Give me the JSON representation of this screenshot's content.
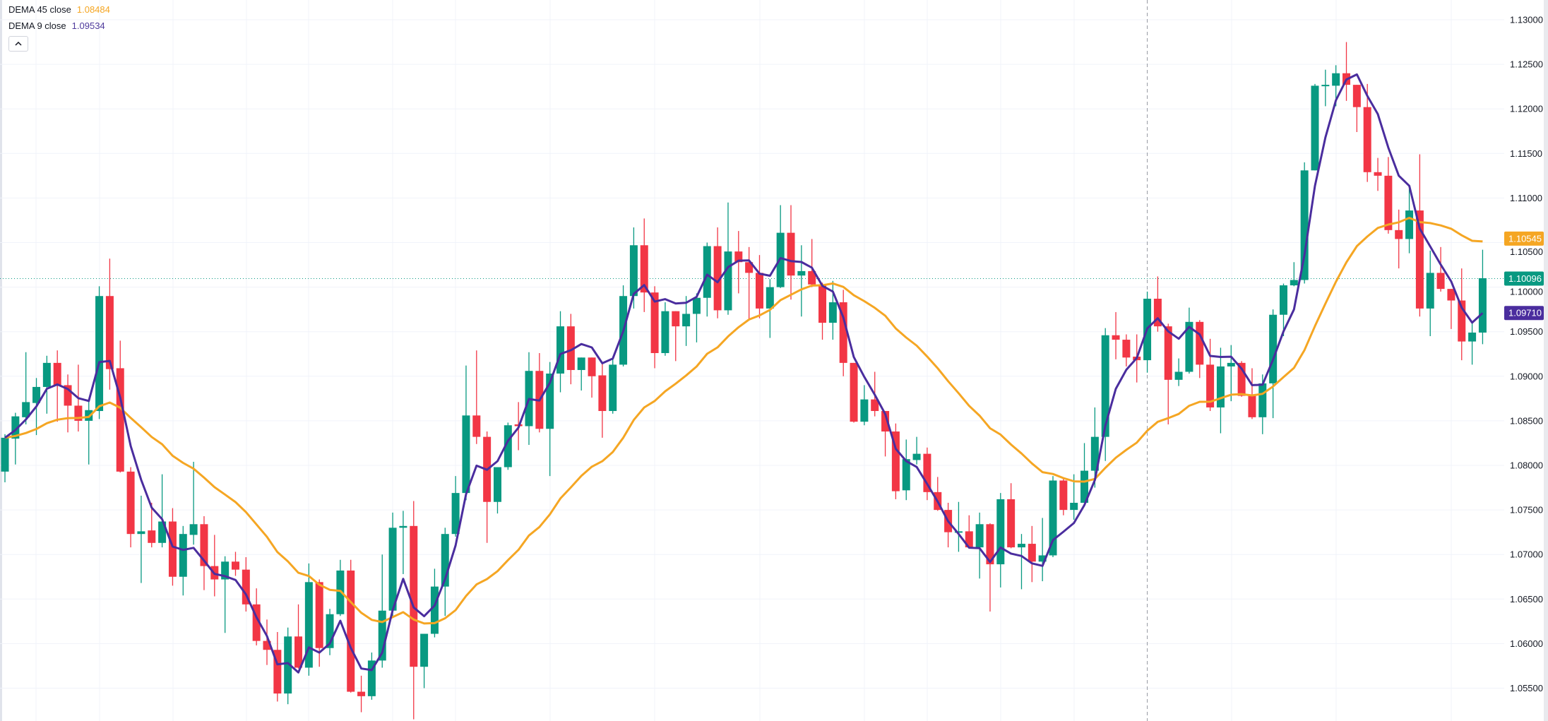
{
  "legend": {
    "indicators": [
      {
        "label": "DEMA 45 close",
        "value": "1.08484",
        "color": "#f5a623"
      },
      {
        "label": "DEMA 9 close",
        "value": "1.09534",
        "color": "#4f3a9c"
      }
    ],
    "collapse_icon": "chevron-up-icon"
  },
  "colors": {
    "up": "#089981",
    "down": "#f23645",
    "dema45": "#f5a623",
    "dema9": "#4a2d9e",
    "grid": "#f0f3fa",
    "axis_text": "#131722",
    "crosshair": "#9598a1"
  },
  "price_labels": [
    {
      "name": "dema45-price-label",
      "value": "1.10545",
      "price": 1.10545,
      "color": "#f5a623"
    },
    {
      "name": "last-price-label",
      "value": "1.10096",
      "price": 1.10096,
      "color": "#089981"
    },
    {
      "name": "dema9-price-label",
      "value": "1.09710",
      "price": 1.0971,
      "color": "#4a2d9e"
    }
  ],
  "chart_data": {
    "type": "candlestick",
    "title": "",
    "ylim": [
      1.0515,
      1.1305
    ],
    "yticks": [
      "1.13000",
      "1.12500",
      "1.12000",
      "1.11500",
      "1.11000",
      "1.10500",
      "1.10000",
      "1.09500",
      "1.09000",
      "1.08500",
      "1.08000",
      "1.07500",
      "1.07000",
      "1.06500",
      "1.06000",
      "1.05500"
    ],
    "grid": true,
    "last_price": 1.10096,
    "crosshair_candle_index": 109,
    "indicators": [
      {
        "type": "DEMA",
        "period": 45,
        "source": "close"
      },
      {
        "type": "DEMA",
        "period": 9,
        "source": "close"
      }
    ],
    "ohlc": [
      [
        1.0793,
        1.0835,
        1.0781,
        1.0831
      ],
      [
        1.083,
        1.0859,
        1.0801,
        1.0855
      ],
      [
        1.0854,
        1.0927,
        1.0846,
        1.0871
      ],
      [
        1.087,
        1.0898,
        1.0834,
        1.0888
      ],
      [
        1.0888,
        1.0923,
        1.0858,
        1.0915
      ],
      [
        1.0915,
        1.0929,
        1.0849,
        1.089
      ],
      [
        1.089,
        1.0902,
        1.0837,
        1.0867
      ],
      [
        1.0867,
        1.0913,
        1.0838,
        1.085
      ],
      [
        1.085,
        1.0874,
        1.0801,
        1.0862
      ],
      [
        1.0861,
        1.1001,
        1.0852,
        1.099
      ],
      [
        1.099,
        1.1032,
        1.0885,
        1.0908
      ],
      [
        1.0909,
        1.094,
        1.0792,
        1.0793
      ],
      [
        1.0793,
        1.0798,
        1.0708,
        1.0723
      ],
      [
        1.0723,
        1.0766,
        1.0668,
        1.0726
      ],
      [
        1.0727,
        1.0758,
        1.0708,
        1.0713
      ],
      [
        1.0713,
        1.079,
        1.0708,
        1.0737
      ],
      [
        1.0737,
        1.0752,
        1.0665,
        1.0675
      ],
      [
        1.0675,
        1.0732,
        1.0654,
        1.0723
      ],
      [
        1.0722,
        1.0804,
        1.0711,
        1.0734
      ],
      [
        1.0734,
        1.0743,
        1.066,
        1.0687
      ],
      [
        1.0687,
        1.0722,
        1.0653,
        1.0672
      ],
      [
        1.0672,
        1.0698,
        1.0612,
        1.0692
      ],
      [
        1.0692,
        1.0703,
        1.0676,
        1.0683
      ],
      [
        1.0683,
        1.0697,
        1.0636,
        1.0644
      ],
      [
        1.0644,
        1.0662,
        1.0598,
        1.0603
      ],
      [
        1.0603,
        1.0627,
        1.0576,
        1.0593
      ],
      [
        1.0593,
        1.0613,
        1.0535,
        1.0544
      ],
      [
        1.0544,
        1.0618,
        1.0532,
        1.0608
      ],
      [
        1.0608,
        1.0644,
        1.0572,
        1.0573
      ],
      [
        1.0573,
        1.069,
        1.0564,
        1.0669
      ],
      [
        1.0669,
        1.0672,
        1.0574,
        1.0595
      ],
      [
        1.0595,
        1.0639,
        1.0587,
        1.0633
      ],
      [
        1.0633,
        1.0694,
        1.0631,
        1.0682
      ],
      [
        1.0682,
        1.0694,
        1.0545,
        1.0546
      ],
      [
        1.0546,
        1.0564,
        1.0523,
        1.0541
      ],
      [
        1.0541,
        1.059,
        1.0537,
        1.0581
      ],
      [
        1.0581,
        1.07,
        1.0573,
        1.0637
      ],
      [
        1.0637,
        1.0747,
        1.0631,
        1.073
      ],
      [
        1.073,
        1.0749,
        1.0678,
        1.0732
      ],
      [
        1.0732,
        1.076,
        1.0515,
        1.0574
      ],
      [
        1.0574,
        1.0611,
        1.055,
        1.0611
      ],
      [
        1.0611,
        1.0684,
        1.0607,
        1.0664
      ],
      [
        1.0664,
        1.073,
        1.0631,
        1.0723
      ],
      [
        1.0723,
        1.0788,
        1.072,
        1.0769
      ],
      [
        1.0769,
        1.0912,
        1.0761,
        1.0856
      ],
      [
        1.0856,
        1.0929,
        1.0824,
        1.0832
      ],
      [
        1.0832,
        1.0838,
        1.0713,
        1.0759
      ],
      [
        1.0759,
        1.0798,
        1.0746,
        1.0798
      ],
      [
        1.0798,
        1.0848,
        1.0795,
        1.0845
      ],
      [
        1.0846,
        1.0871,
        1.0817,
        1.0844
      ],
      [
        1.0844,
        1.0927,
        1.0823,
        1.0906
      ],
      [
        1.0906,
        1.0926,
        1.0837,
        1.0841
      ],
      [
        1.0841,
        1.0916,
        1.0788,
        1.0903
      ],
      [
        1.0903,
        1.0973,
        1.0882,
        1.0956
      ],
      [
        1.0956,
        1.097,
        1.0891,
        1.0907
      ],
      [
        1.0907,
        1.0921,
        1.0884,
        1.0921
      ],
      [
        1.0921,
        1.0921,
        1.0876,
        1.09
      ],
      [
        1.0901,
        1.0914,
        1.0831,
        1.0861
      ],
      [
        1.0861,
        1.0922,
        1.0858,
        1.0913
      ],
      [
        1.0913,
        1.1002,
        1.0911,
        1.099
      ],
      [
        1.099,
        1.1067,
        1.0976,
        1.1047
      ],
      [
        1.1047,
        1.1077,
        1.0972,
        1.0994
      ],
      [
        1.0994,
        1.1001,
        1.0909,
        1.0926
      ],
      [
        1.0926,
        1.0983,
        1.0923,
        1.0973
      ],
      [
        1.0973,
        1.0973,
        1.0917,
        1.0956
      ],
      [
        1.0956,
        1.099,
        1.0934,
        1.097
      ],
      [
        1.097,
        1.0993,
        1.0938,
        1.0988
      ],
      [
        1.0988,
        1.105,
        1.0967,
        1.1046
      ],
      [
        1.1046,
        1.1067,
        1.0965,
        1.0974
      ],
      [
        1.0974,
        1.1095,
        1.0969,
        1.104
      ],
      [
        1.104,
        1.1063,
        1.0993,
        1.1028
      ],
      [
        1.1028,
        1.1045,
        1.0963,
        1.1016
      ],
      [
        1.1016,
        1.1036,
        1.0965,
        1.0976
      ],
      [
        1.0976,
        1.1009,
        1.0943,
        1.1
      ],
      [
        1.1,
        1.1092,
        1.0999,
        1.1061
      ],
      [
        1.1061,
        1.1092,
        1.0986,
        1.1013
      ],
      [
        1.1013,
        1.1047,
        1.0967,
        1.1018
      ],
      [
        1.1018,
        1.1054,
        1.1,
        1.1003
      ],
      [
        1.1003,
        1.1005,
        1.0941,
        1.096
      ],
      [
        1.096,
        1.1007,
        1.0941,
        1.0983
      ],
      [
        1.0983,
        1.0997,
        1.09,
        1.0915
      ],
      [
        1.0915,
        1.0915,
        1.0848,
        1.0849
      ],
      [
        1.0849,
        1.089,
        1.0845,
        1.0874
      ],
      [
        1.0874,
        1.0905,
        1.0855,
        1.0861
      ],
      [
        1.0861,
        1.0861,
        1.081,
        1.0838
      ],
      [
        1.0838,
        1.0847,
        1.0762,
        1.0771
      ],
      [
        1.0772,
        1.0829,
        1.0761,
        1.0807
      ],
      [
        1.0806,
        1.0832,
        1.0801,
        1.0813
      ],
      [
        1.0813,
        1.082,
        1.0761,
        1.077
      ],
      [
        1.077,
        1.0787,
        1.0749,
        1.075
      ],
      [
        1.075,
        1.0758,
        1.0708,
        1.0725
      ],
      [
        1.0725,
        1.0759,
        1.0703,
        1.0726
      ],
      [
        1.0726,
        1.0744,
        1.0707,
        1.0708
      ],
      [
        1.0708,
        1.0747,
        1.0673,
        1.0734
      ],
      [
        1.0734,
        1.0735,
        1.0636,
        1.0689
      ],
      [
        1.0689,
        1.0769,
        1.0663,
        1.0762
      ],
      [
        1.0762,
        1.078,
        1.0707,
        1.0708
      ],
      [
        1.0708,
        1.0723,
        1.0661,
        1.0712
      ],
      [
        1.0712,
        1.0732,
        1.0669,
        1.0692
      ],
      [
        1.0692,
        1.0741,
        1.067,
        1.0699
      ],
      [
        1.0699,
        1.0788,
        1.0697,
        1.0783
      ],
      [
        1.0783,
        1.0786,
        1.0744,
        1.075
      ],
      [
        1.075,
        1.079,
        1.0739,
        1.0758
      ],
      [
        1.0758,
        1.0825,
        1.0758,
        1.0794
      ],
      [
        1.0794,
        1.0865,
        1.0775,
        1.0832
      ],
      [
        1.0832,
        1.0954,
        1.0805,
        1.0946
      ],
      [
        1.0946,
        1.0972,
        1.0919,
        1.0941
      ],
      [
        1.0941,
        1.0947,
        1.0911,
        1.0921
      ],
      [
        1.0922,
        1.0947,
        1.0893,
        1.0918
      ],
      [
        1.0918,
        1.0995,
        1.0904,
        1.0987
      ],
      [
        1.0987,
        1.1012,
        1.095,
        1.0956
      ],
      [
        1.0956,
        1.0959,
        1.0846,
        1.0896
      ],
      [
        1.0896,
        1.092,
        1.0889,
        1.0905
      ],
      [
        1.0905,
        1.0977,
        1.0903,
        1.0961
      ],
      [
        1.0961,
        1.0963,
        1.0898,
        1.0913
      ],
      [
        1.0913,
        1.0942,
        1.0861,
        1.0865
      ],
      [
        1.0865,
        1.0932,
        1.0836,
        1.0911
      ],
      [
        1.0911,
        1.0935,
        1.0872,
        1.0915
      ],
      [
        1.0915,
        1.0917,
        1.0877,
        1.0878
      ],
      [
        1.0878,
        1.0909,
        1.0852,
        1.0854
      ],
      [
        1.0854,
        1.0902,
        1.0835,
        1.0892
      ],
      [
        1.0892,
        1.0975,
        1.0853,
        1.0969
      ],
      [
        1.0969,
        1.1004,
        1.0945,
        1.1002
      ],
      [
        1.1002,
        1.1028,
        1.1001,
        1.1008
      ],
      [
        1.1008,
        1.114,
        1.1004,
        1.1131
      ],
      [
        1.1131,
        1.1228,
        1.1131,
        1.1226
      ],
      [
        1.1226,
        1.1244,
        1.1203,
        1.1227
      ],
      [
        1.1226,
        1.1249,
        1.1203,
        1.124
      ],
      [
        1.124,
        1.1275,
        1.1209,
        1.1227
      ],
      [
        1.1227,
        1.1227,
        1.1174,
        1.1202
      ],
      [
        1.1202,
        1.1228,
        1.1118,
        1.1129
      ],
      [
        1.1129,
        1.1145,
        1.1108,
        1.1125
      ],
      [
        1.1125,
        1.1146,
        1.106,
        1.1064
      ],
      [
        1.1064,
        1.1087,
        1.1021,
        1.1054
      ],
      [
        1.1054,
        1.1111,
        1.1038,
        1.1086
      ],
      [
        1.1086,
        1.1149,
        1.0967,
        1.0976
      ],
      [
        1.0976,
        1.1041,
        1.0945,
        1.1016
      ],
      [
        1.1016,
        1.1045,
        1.0995,
        1.0998
      ],
      [
        1.0998,
        1.0998,
        1.0953,
        1.0985
      ],
      [
        1.0985,
        1.1021,
        1.0918,
        1.0939
      ],
      [
        1.0939,
        1.096,
        1.0913,
        1.0949
      ],
      [
        1.0949,
        1.1042,
        1.0936,
        1.101
      ]
    ]
  }
}
